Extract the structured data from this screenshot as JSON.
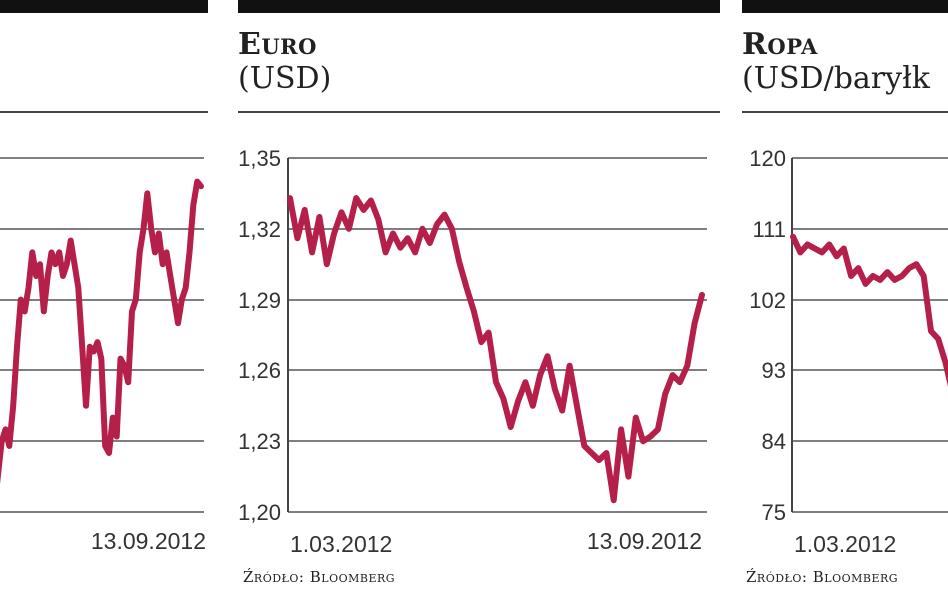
{
  "chart_data": [
    {
      "type": "line",
      "title": "",
      "subtitle": "",
      "series": [
        {
          "color": "#b5204a",
          "values": [
            1.2,
            1.215,
            1.23,
            1.235,
            1.228,
            1.245,
            1.27,
            1.29,
            1.285,
            1.295,
            1.31,
            1.3,
            1.305,
            1.285,
            1.3,
            1.31,
            1.305,
            1.31,
            1.3,
            1.305,
            1.315,
            1.305,
            1.295,
            1.27,
            1.245,
            1.27,
            1.268,
            1.272,
            1.265,
            1.228,
            1.225,
            1.24,
            1.232,
            1.265,
            1.262,
            1.255,
            1.285,
            1.29,
            1.31,
            1.32,
            1.335,
            1.32,
            1.31,
            1.318,
            1.305,
            1.31,
            1.3,
            1.29,
            1.28,
            1.29,
            1.295,
            1.31,
            1.33,
            1.34,
            1.338
          ]
        }
      ],
      "x_labels": {
        "end": "13.09.2012"
      }
    },
    {
      "type": "line",
      "title": "Euro",
      "subtitle": "(USD)",
      "ylim": [
        1.2,
        1.35
      ],
      "yticks": [
        "1,35",
        "1,32",
        "1,29",
        "1,26",
        "1,23",
        "1,20"
      ],
      "x_labels": {
        "start": "1.03.2012",
        "end": "13.09.2012"
      },
      "source": "Źródło: Bloomberg",
      "series": [
        {
          "color": "#b5204a",
          "values": [
            1.333,
            1.316,
            1.328,
            1.31,
            1.325,
            1.305,
            1.318,
            1.327,
            1.32,
            1.333,
            1.328,
            1.332,
            1.324,
            1.31,
            1.318,
            1.312,
            1.316,
            1.31,
            1.32,
            1.314,
            1.322,
            1.326,
            1.32,
            1.306,
            1.295,
            1.285,
            1.272,
            1.276,
            1.255,
            1.248,
            1.236,
            1.247,
            1.255,
            1.245,
            1.258,
            1.266,
            1.252,
            1.243,
            1.262,
            1.245,
            1.228,
            1.225,
            1.222,
            1.225,
            1.205,
            1.235,
            1.215,
            1.24,
            1.23,
            1.232,
            1.235,
            1.25,
            1.258,
            1.255,
            1.262,
            1.28,
            1.292
          ]
        }
      ]
    },
    {
      "type": "line",
      "title": "Ropa",
      "subtitle": "(USD/baryłk",
      "ylim": [
        75,
        120
      ],
      "yticks": [
        "120",
        "111",
        "102",
        "93",
        "84",
        "75"
      ],
      "x_labels": {
        "start": "1.03.2012"
      },
      "source": "Źródło: Bloomberg",
      "series": [
        {
          "color": "#b5204a",
          "values": [
            110,
            108,
            109,
            108.5,
            108,
            109,
            107.5,
            108.5,
            105,
            106,
            104,
            105,
            104.5,
            105.5,
            104.5,
            105,
            106,
            106.5,
            105,
            98,
            97,
            94,
            90,
            88
          ]
        }
      ]
    }
  ]
}
